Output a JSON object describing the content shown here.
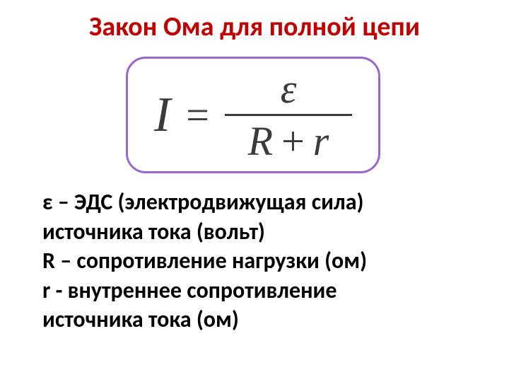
{
  "title": {
    "text": "Закон Ома для полной цепи",
    "color": "#c00000",
    "fontsize": 38
  },
  "formula": {
    "lhs": "I",
    "equals": "=",
    "numerator": "ε",
    "denom_R": "R",
    "plus": "+",
    "denom_r": "r",
    "border_color": "#9966cc",
    "text_color": "#3a3a3a"
  },
  "definitions": {
    "lines": [
      "ε – ЭДС (электродвижущая сила)",
      "источника тока (вольт)",
      "R – сопротивление нагрузки (ом)",
      "r -  внутреннее сопротивление",
      "источника тока (ом)"
    ],
    "fontsize": 32,
    "color": "#000000"
  },
  "background_color": "#ffffff"
}
